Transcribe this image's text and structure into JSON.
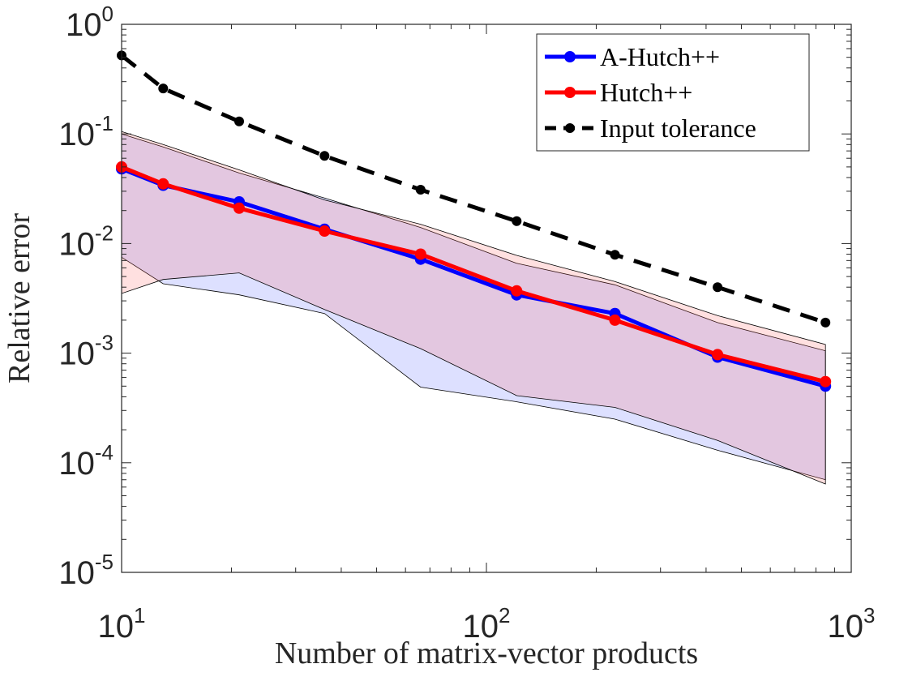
{
  "chart_data": {
    "type": "line",
    "title": "",
    "xlabel": "Number of matrix-vector products",
    "ylabel": "Relative error",
    "xscale": "log",
    "yscale": "log",
    "xlim": [
      10,
      1000
    ],
    "ylim": [
      1e-05,
      1
    ],
    "xticks": [
      {
        "value": 10,
        "base": "10",
        "exp": "1"
      },
      {
        "value": 100,
        "base": "10",
        "exp": "2"
      },
      {
        "value": 1000,
        "base": "10",
        "exp": "3"
      }
    ],
    "yticks": [
      {
        "value": 1,
        "base": "10",
        "exp": "0"
      },
      {
        "value": 0.1,
        "base": "10",
        "exp": "-1"
      },
      {
        "value": 0.01,
        "base": "10",
        "exp": "-2"
      },
      {
        "value": 0.001,
        "base": "10",
        "exp": "-3"
      },
      {
        "value": 0.0001,
        "base": "10",
        "exp": "-4"
      },
      {
        "value": 1e-05,
        "base": "10",
        "exp": "-5"
      }
    ],
    "legend_position": "top-right",
    "series": [
      {
        "name": "A-Hutch++",
        "color": "#0000ff",
        "style": "solid",
        "x": [
          10,
          13,
          21,
          36,
          66,
          121,
          225,
          430,
          850
        ],
        "y": [
          0.048,
          0.034,
          0.024,
          0.0135,
          0.0072,
          0.0034,
          0.0023,
          0.00092,
          0.0005
        ]
      },
      {
        "name": "Hutch++",
        "color": "#ff0000",
        "style": "solid",
        "x": [
          10,
          13,
          21,
          36,
          66,
          121,
          225,
          430,
          850
        ],
        "y": [
          0.05,
          0.035,
          0.021,
          0.013,
          0.008,
          0.0037,
          0.002,
          0.00097,
          0.00055
        ]
      },
      {
        "name": "Input tolerance",
        "color": "#000000",
        "style": "dashed",
        "x": [
          10,
          13,
          21,
          36,
          66,
          121,
          225,
          430,
          850
        ],
        "y": [
          0.52,
          0.26,
          0.13,
          0.063,
          0.031,
          0.016,
          0.0079,
          0.004,
          0.0019
        ]
      }
    ],
    "bands": [
      {
        "name": "A-Hutch++ range",
        "color": "#5566ff",
        "x": [
          10,
          13,
          21,
          36,
          66,
          121,
          225,
          430,
          850
        ],
        "upper": [
          0.1,
          0.076,
          0.044,
          0.026,
          0.014,
          0.0066,
          0.0042,
          0.0019,
          0.00105
        ],
        "lower": [
          0.0075,
          0.0043,
          0.0034,
          0.0023,
          0.00049,
          0.00036,
          0.00025,
          0.00013,
          7e-05
        ]
      },
      {
        "name": "Hutch++ range",
        "color": "#ff6666",
        "x": [
          10,
          13,
          21,
          36,
          66,
          121,
          225,
          430,
          850
        ],
        "upper": [
          0.105,
          0.08,
          0.047,
          0.025,
          0.015,
          0.0078,
          0.0045,
          0.0022,
          0.0012
        ],
        "lower": [
          0.0035,
          0.0047,
          0.0054,
          0.0025,
          0.0011,
          0.00041,
          0.00032,
          0.00016,
          6.4e-05
        ]
      }
    ]
  }
}
